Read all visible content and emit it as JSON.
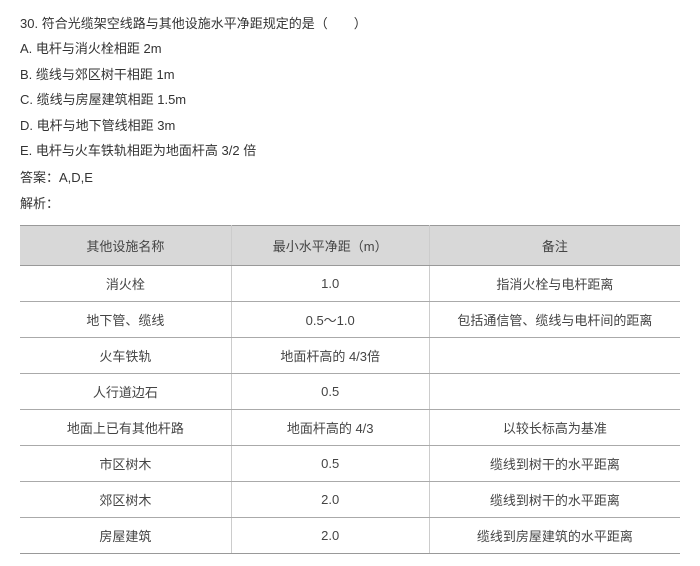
{
  "question": {
    "number": "30.",
    "stem": "符合光缆架空线路与其他设施水平净距规定的是（　　）",
    "options": [
      {
        "letter": "A.",
        "text": "电杆与消火栓相距 2m"
      },
      {
        "letter": "B.",
        "text": "缆线与郊区树干相距 1m"
      },
      {
        "letter": "C.",
        "text": "缆线与房屋建筑相距 1.5m"
      },
      {
        "letter": "D.",
        "text": "电杆与地下管线相距 3m"
      },
      {
        "letter": "E.",
        "text": "电杆与火车铁轨相距为地面杆高 3/2 倍"
      }
    ],
    "answer_label": "答案：",
    "answer_value": "A,D,E",
    "explain_label": "解析："
  },
  "table": {
    "columns": [
      "其他设施名称",
      "最小水平净距（m）",
      "备注"
    ],
    "col_widths": [
      "32%",
      "30%",
      "38%"
    ],
    "rows": [
      [
        "消火栓",
        "1.0",
        "指消火栓与电杆距离"
      ],
      [
        "地下管、缆线",
        "0.5～1.0",
        "包括通信管、缆线与电杆间的距离"
      ],
      [
        "火车铁轨",
        "地面杆高的 4/3倍",
        ""
      ],
      [
        "人行道边石",
        "0.5",
        ""
      ],
      [
        "地面上已有其他杆路",
        "地面杆高的 4/3",
        "以较长标高为基准"
      ],
      [
        "市区树木",
        "0.5",
        "缆线到树干的水平距离"
      ],
      [
        "郊区树木",
        "2.0",
        "缆线到树干的水平距离"
      ],
      [
        "房屋建筑",
        "2.0",
        "缆线到房屋建筑的水平距离"
      ]
    ],
    "header_bg": "#d8d8d8",
    "border_color": "#aaaaaa",
    "font_size": 13
  }
}
